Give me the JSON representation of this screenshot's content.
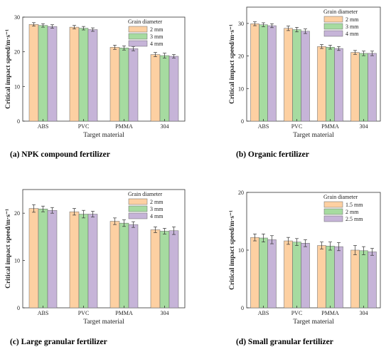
{
  "colors": {
    "s1": "#fdd0a2",
    "s2": "#a6dba0",
    "s3": "#c6b4d8",
    "edge": "#666666"
  },
  "chart_data": [
    {
      "type": "bar",
      "caption": "(a) NPK compound fertilizer",
      "categories": [
        "ABS",
        "PVC",
        "PMMA",
        "304"
      ],
      "xlabel": "Target material",
      "ylabel": "Critical impact speed/m·s⁻¹",
      "ylim": [
        0,
        30
      ],
      "yticks": [
        0,
        10,
        20,
        30
      ],
      "legend_title": "Grain diameter",
      "legend_position": "top-right",
      "series": [
        {
          "name": "2 mm",
          "values": [
            27.9,
            27.1,
            21.3,
            19.2
          ],
          "errors": [
            0.5,
            0.5,
            0.6,
            0.6
          ]
        },
        {
          "name": "3 mm",
          "values": [
            27.6,
            26.8,
            21.1,
            18.9
          ],
          "errors": [
            0.5,
            0.5,
            0.6,
            0.7
          ]
        },
        {
          "name": "4 mm",
          "values": [
            27.3,
            26.4,
            20.9,
            18.7
          ],
          "errors": [
            0.5,
            0.5,
            0.6,
            0.5
          ]
        }
      ]
    },
    {
      "type": "bar",
      "caption": "(b) Organic fertilizer",
      "categories": [
        "ABS",
        "PVC",
        "PMMA",
        "304"
      ],
      "xlabel": "Target material",
      "ylabel": "Critical impact speed/m·s⁻¹",
      "ylim": [
        0,
        35
      ],
      "yticks": [
        0,
        10,
        20,
        30
      ],
      "legend_title": "Grain diameter",
      "legend_position": "top-right",
      "series": [
        {
          "name": "2 mm",
          "values": [
            29.9,
            28.5,
            22.9,
            21.1
          ],
          "errors": [
            0.6,
            0.7,
            0.6,
            0.6
          ]
        },
        {
          "name": "3 mm",
          "values": [
            29.6,
            28.1,
            22.7,
            20.8
          ],
          "errors": [
            0.6,
            0.7,
            0.6,
            0.7
          ]
        },
        {
          "name": "4 mm",
          "values": [
            29.3,
            27.6,
            22.3,
            20.8
          ],
          "errors": [
            0.6,
            0.7,
            0.6,
            0.7
          ]
        }
      ]
    },
    {
      "type": "bar",
      "caption": "(c) Large granular fertilizer",
      "categories": [
        "ABS",
        "PVC",
        "PMMA",
        "304"
      ],
      "xlabel": "Target material",
      "ylabel": "Critical impact speed/m·s⁻¹",
      "ylim": [
        0,
        25
      ],
      "yticks": [
        0,
        10,
        20
      ],
      "legend_title": "Grain diameter",
      "legend_position": "top-right",
      "series": [
        {
          "name": "2 mm",
          "values": [
            21.0,
            20.3,
            18.3,
            16.5
          ],
          "errors": [
            0.8,
            0.7,
            0.7,
            0.6
          ]
        },
        {
          "name": "3 mm",
          "values": [
            20.9,
            19.8,
            17.9,
            16.2
          ],
          "errors": [
            0.6,
            0.8,
            0.7,
            0.6
          ]
        },
        {
          "name": "4 mm",
          "values": [
            20.6,
            19.8,
            17.6,
            16.3
          ],
          "errors": [
            0.6,
            0.6,
            0.6,
            0.8
          ]
        }
      ]
    },
    {
      "type": "bar",
      "caption": "(d) Small granular fertilizer",
      "categories": [
        "ABS",
        "PVC",
        "PMMA",
        "304"
      ],
      "xlabel": "Target material",
      "ylabel": "Critical impact speed/m·s⁻¹",
      "ylim": [
        0,
        20
      ],
      "yticks": [
        0,
        10,
        20
      ],
      "legend_title": "Grain diameter",
      "legend_position": "top-right",
      "series": [
        {
          "name": "1.5 mm",
          "values": [
            12.2,
            11.6,
            10.8,
            10.0
          ],
          "errors": [
            0.6,
            0.6,
            0.6,
            0.8
          ]
        },
        {
          "name": "2 mm",
          "values": [
            12.1,
            11.4,
            10.7,
            9.9
          ],
          "errors": [
            0.7,
            0.6,
            0.7,
            0.7
          ]
        },
        {
          "name": "2.5 mm",
          "values": [
            11.8,
            11.2,
            10.6,
            9.7
          ],
          "errors": [
            0.7,
            0.6,
            0.7,
            0.6
          ]
        }
      ]
    }
  ]
}
